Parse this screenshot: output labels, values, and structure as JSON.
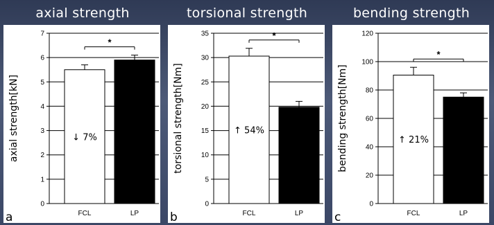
{
  "chart_data": [
    {
      "type": "bar",
      "title": "axial strength",
      "ylabel": "axial strength[kN]",
      "categories": [
        "FCL",
        "LP"
      ],
      "values": [
        5.5,
        5.9
      ],
      "errors": [
        0.2,
        0.2
      ],
      "bar_colors": [
        "#ffffff",
        "#000000"
      ],
      "ylim": [
        0,
        7
      ],
      "yticks": [
        0,
        1,
        2,
        3,
        4,
        5,
        6,
        7
      ],
      "ytick_labels": [
        "0",
        "1",
        "2",
        "3",
        "4",
        "5",
        "6",
        "7"
      ],
      "annotation": "↓ 7%",
      "significance": "*",
      "panel_label": "a"
    },
    {
      "type": "bar",
      "title": "torsional strength",
      "ylabel": "torsional strength[Nm]",
      "categories": [
        "FCL",
        "LP"
      ],
      "values": [
        30.3,
        19.8
      ],
      "errors": [
        1.6,
        1.2
      ],
      "bar_colors": [
        "#ffffff",
        "#000000"
      ],
      "ylim": [
        0,
        35
      ],
      "yticks": [
        0,
        5,
        10,
        15,
        20,
        25,
        30,
        35
      ],
      "ytick_labels": [
        "0",
        "5",
        "10",
        "15",
        "20",
        "25",
        "30",
        "35"
      ],
      "annotation": "↑ 54%",
      "significance": "*",
      "panel_label": "b"
    },
    {
      "type": "bar",
      "title": "bending strength",
      "ylabel": "bending strength[Nm]",
      "categories": [
        "FCL",
        "LP"
      ],
      "values": [
        90.5,
        75
      ],
      "errors": [
        5.5,
        3
      ],
      "bar_colors": [
        "#ffffff",
        "#000000"
      ],
      "ylim": [
        0,
        120
      ],
      "yticks": [
        0,
        20,
        40,
        60,
        80,
        100,
        120
      ],
      "ytick_labels": [
        "0",
        "20",
        "40",
        "60",
        "80",
        "100",
        "120"
      ],
      "annotation": "↑ 21%",
      "significance": "*",
      "panel_label": "c"
    }
  ]
}
